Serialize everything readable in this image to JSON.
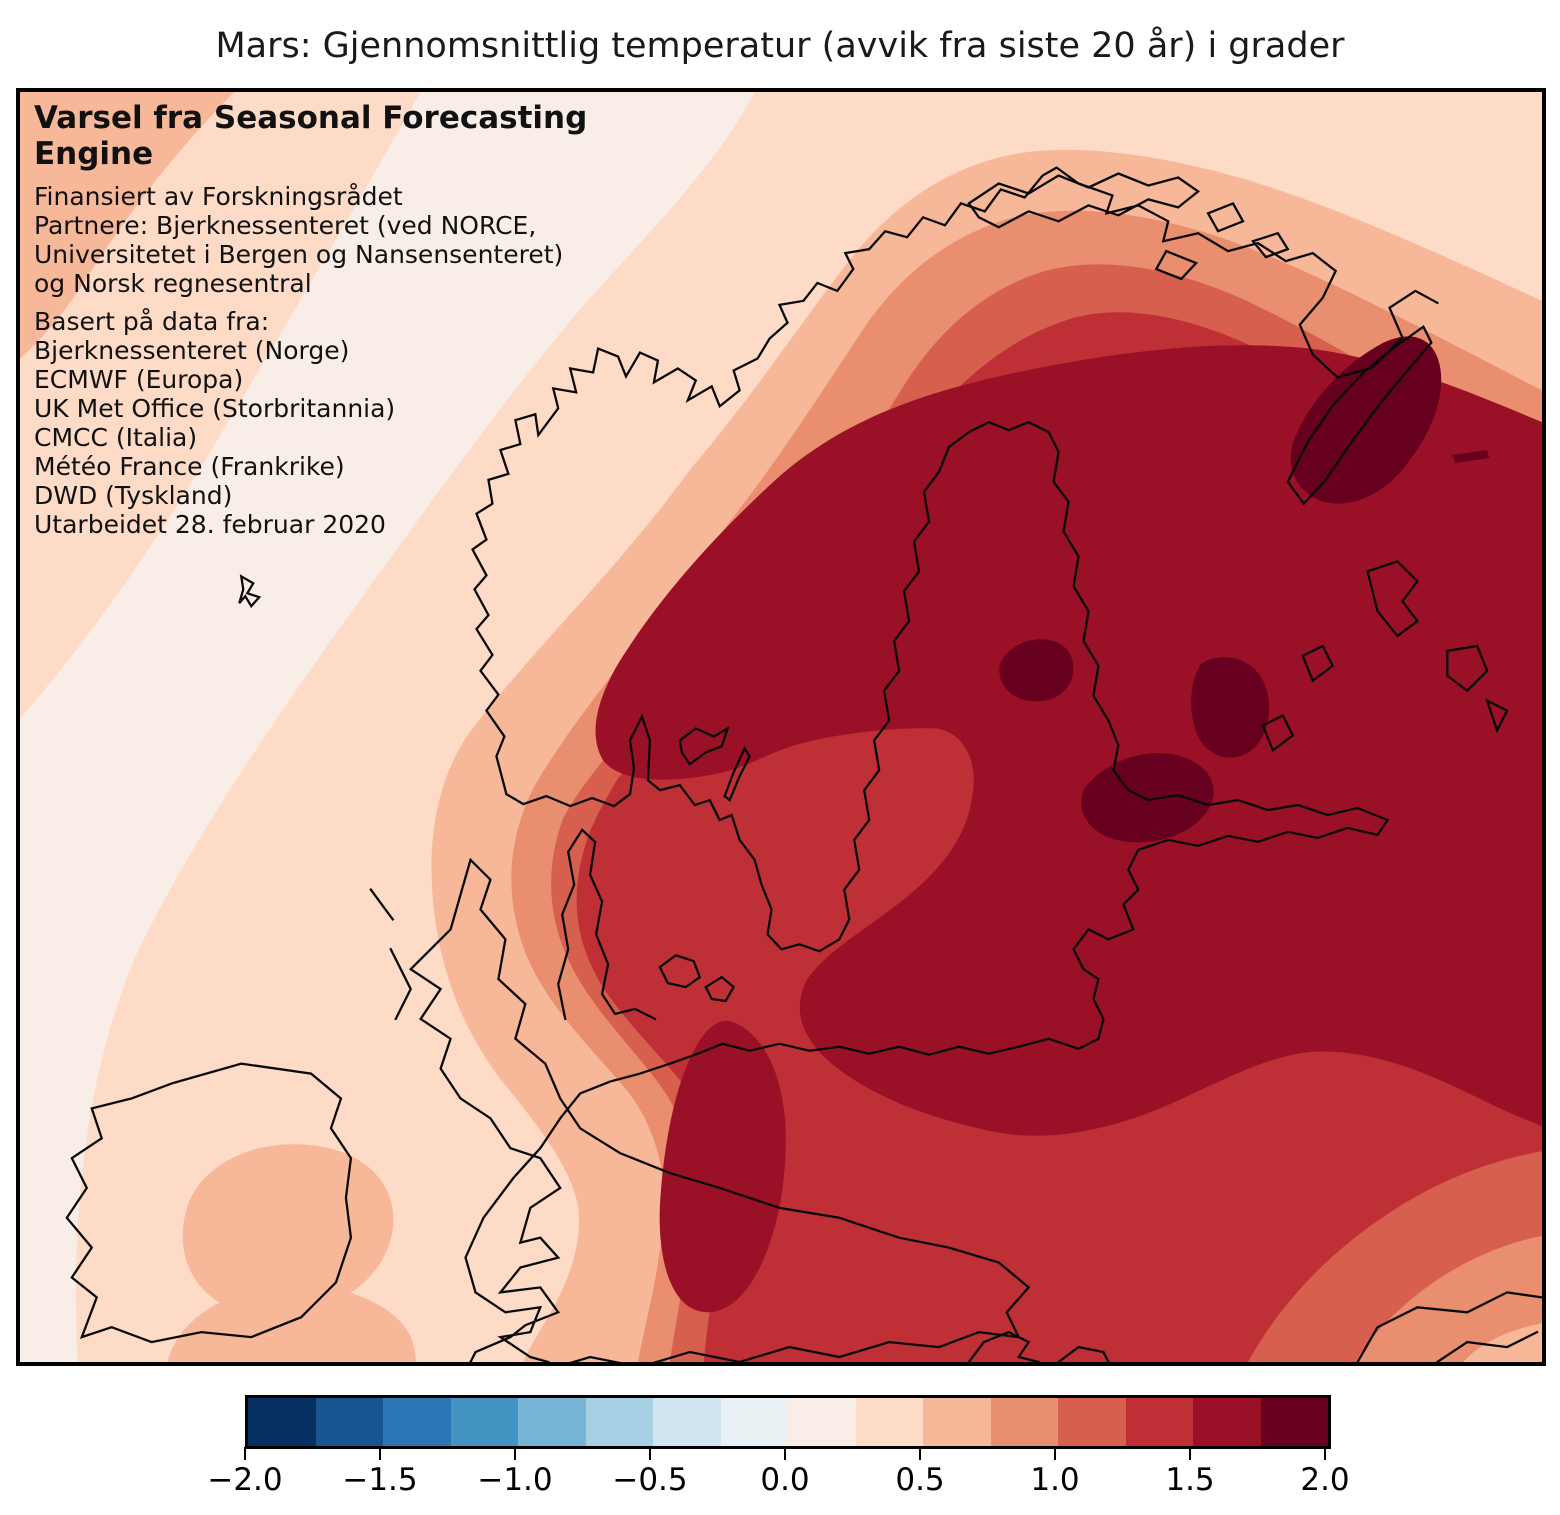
{
  "figure": {
    "title": "Mars: Gjennomsnittlig temperatur (avvik fra siste 20 år) i grader"
  },
  "annotation": {
    "heading": "Varsel fra Seasonal Forecasting Engine",
    "lines_block1": [
      "Finansiert av Forskningsrådet",
      "Partnere: Bjerknessenteret (ved NORCE,",
      "Universitetet i Bergen og Nansensenteret)",
      "og Norsk regnesentral"
    ],
    "lines_block2": [
      "Basert på data fra:",
      "Bjerknessenteret (Norge)",
      "ECMWF (Europa)",
      "UK Met Office (Storbritannia)",
      "CMCC (Italia)",
      "Météo France (Frankrike)",
      "DWD (Tyskland)",
      "Utarbeidet 28. februar 2020"
    ]
  },
  "colorbar": {
    "min": -2.0,
    "max": 2.0,
    "n_segments": 16,
    "tick_step": 0.5,
    "tick_labels": [
      "−2.0",
      "−1.5",
      "−1.0",
      "−0.5",
      "0.0",
      "0.5",
      "1.0",
      "1.5",
      "2.0"
    ],
    "segment_colors": [
      "#053061",
      "#18548f",
      "#2c75b4",
      "#4393c3",
      "#78b4d5",
      "#a7d0e4",
      "#d1e5f0",
      "#eaf1f5",
      "#f9eee7",
      "#fddbc7",
      "#f7b799",
      "#ea8e70",
      "#d6604d",
      "#be3036",
      "#991027",
      "#67001f"
    ]
  },
  "map_data": {
    "type": "filled-contour-temperature-anomaly-map",
    "contour_interval": 0.25,
    "visible_anomaly_bands": [
      {
        "from": 0.0,
        "to": 0.25,
        "color": "#f9eee7"
      },
      {
        "from": 0.25,
        "to": 0.5,
        "color": "#fddbc7"
      },
      {
        "from": 0.5,
        "to": 0.75,
        "color": "#f7b799"
      },
      {
        "from": 0.75,
        "to": 1.0,
        "color": "#ea8e70"
      },
      {
        "from": 1.0,
        "to": 1.25,
        "color": "#d6604d"
      },
      {
        "from": 1.25,
        "to": 1.5,
        "color": "#be3036"
      },
      {
        "from": 1.5,
        "to": 1.75,
        "color": "#991027"
      },
      {
        "from": 1.75,
        "to": 2.0,
        "color": "#67001f"
      }
    ],
    "anomaly_extremes": {
      "lowest_visible_band": "0.0–0.25",
      "highest_visible_band": "1.75–2.0",
      "warmest_area": "east/northeast of map (Finland, Baltic, NW-Russia)",
      "coolest_area": "northwest Atlantic corner of map"
    }
  }
}
